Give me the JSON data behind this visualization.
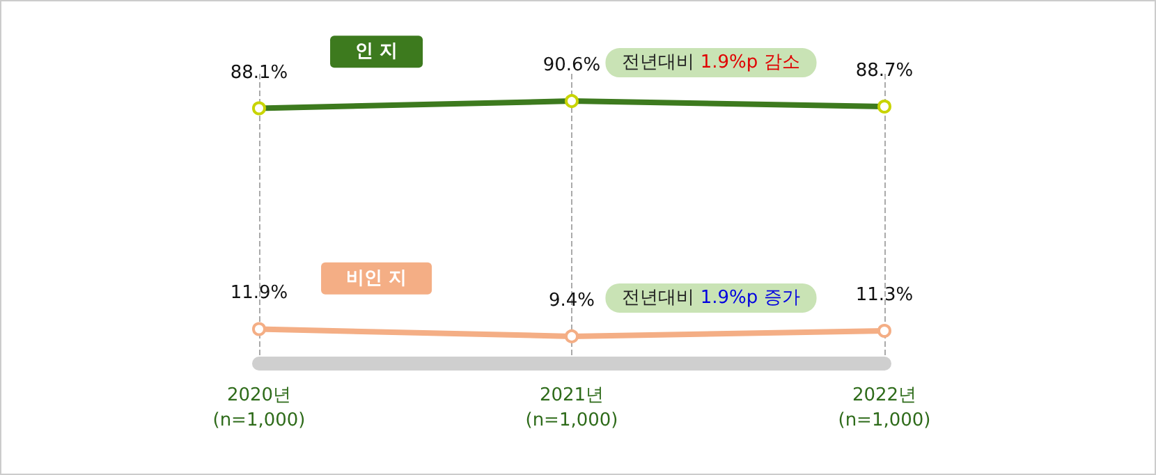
{
  "chart_data": {
    "type": "line",
    "categories": [
      "2020년\n(n=1,000)",
      "2021년\n(n=1,000)",
      "2022년\n(n=1,000)"
    ],
    "series": [
      {
        "name": "인 지",
        "color": "#3d7a1e",
        "values": [
          88.1,
          90.6,
          88.7
        ],
        "value_labels": [
          "88.1%",
          "90.6%",
          "88.7%"
        ]
      },
      {
        "name": "비인 지",
        "color": "#f4ae85",
        "values": [
          11.9,
          9.4,
          11.3
        ],
        "value_labels": [
          "11.9%",
          "9.4%",
          "11.3%"
        ]
      }
    ],
    "annotations": [
      "전년대비 1.9%p 감소",
      "전년대비 1.9%p 증가"
    ],
    "marker": "circle",
    "line_style": "solid",
    "grid": "x",
    "legend": false
  }
}
